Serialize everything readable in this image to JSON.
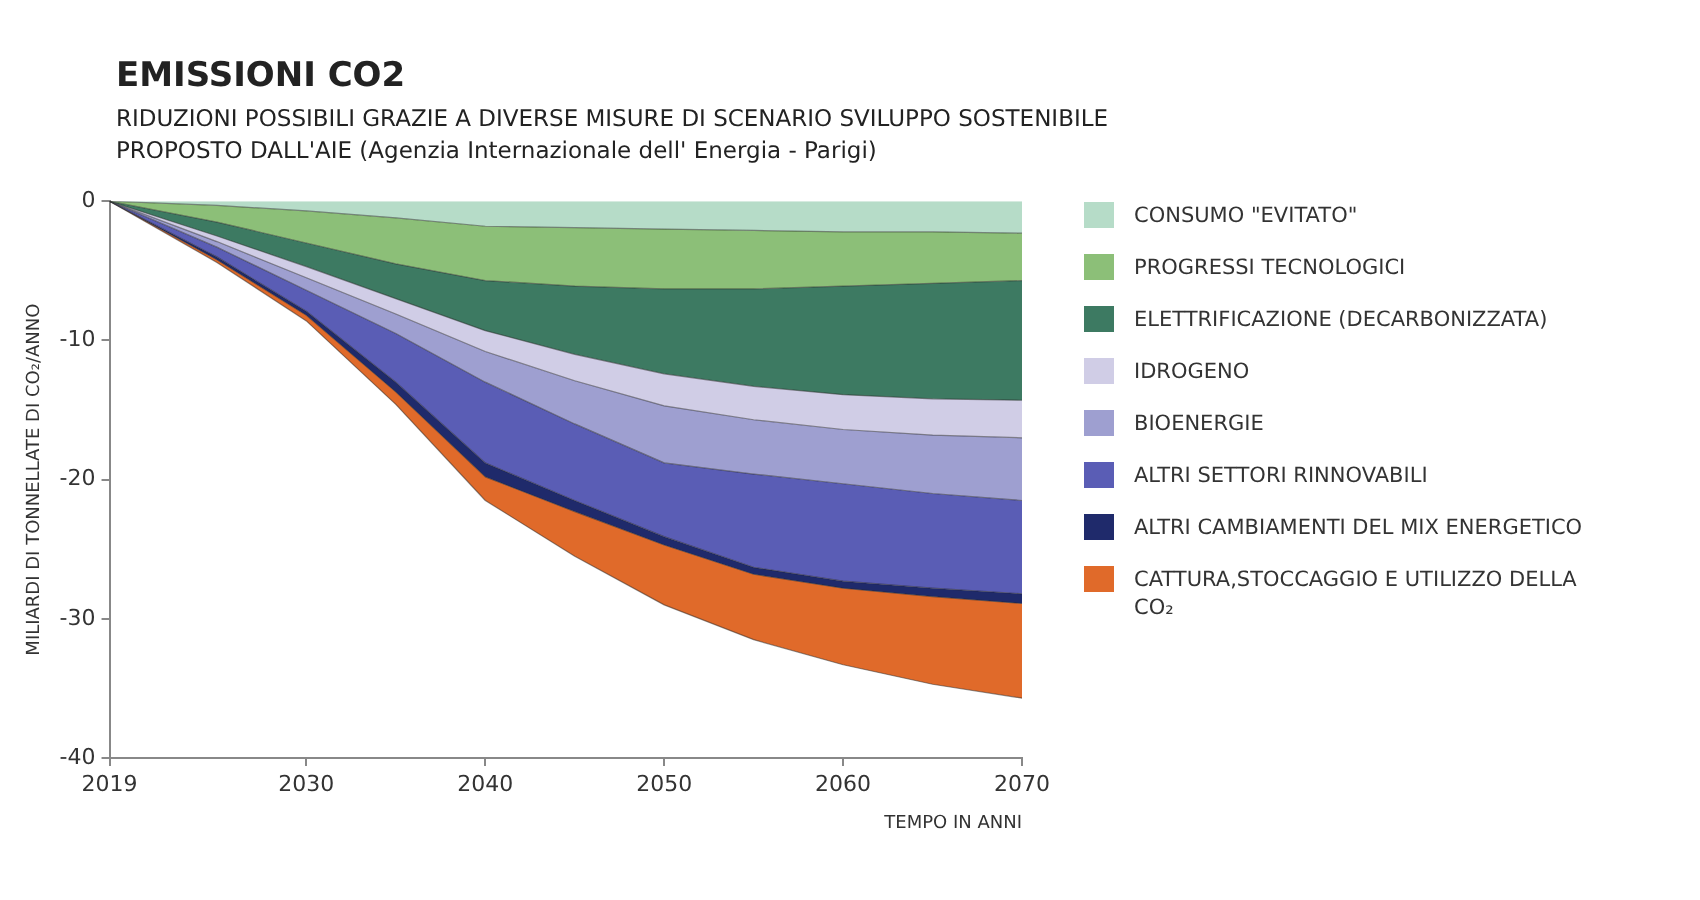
{
  "chart_data": {
    "type": "area",
    "title": "EMISSIONI CO2",
    "subtitle": "RIDUZIONI POSSIBILI GRAZIE A DIVERSE MISURE DI SCENARIO SVILUPPO SOSTENIBILE PROPOSTO DALL'AIE (Agenzia Internazionale dell' Energia - Parigi)",
    "xlabel": "TEMPO IN ANNI",
    "ylabel": "MILIARDI DI TONNELLATE DI CO₂/ANNO",
    "x": [
      2019,
      2025,
      2030,
      2035,
      2040,
      2045,
      2050,
      2055,
      2060,
      2065,
      2070
    ],
    "stacked": true,
    "series": [
      {
        "name": "CONSUMO \"EVITATO\"",
        "color": "#b6dcc8",
        "values": [
          0,
          -0.3,
          -0.7,
          -1.2,
          -1.8,
          -1.9,
          -2.0,
          -2.1,
          -2.2,
          -2.2,
          -2.3
        ]
      },
      {
        "name": "PROGRESSI TECNOLOGICI",
        "color": "#8cbf78",
        "values": [
          0,
          -1.2,
          -2.3,
          -3.3,
          -3.9,
          -4.2,
          -4.3,
          -4.2,
          -3.9,
          -3.7,
          -3.4
        ]
      },
      {
        "name": "ELETTRIFICAZIONE (DECARBONIZZATA)",
        "color": "#3d7a62",
        "values": [
          0,
          -1.0,
          -1.7,
          -2.5,
          -3.6,
          -4.9,
          -6.1,
          -7.0,
          -7.8,
          -8.3,
          -8.6
        ]
      },
      {
        "name": "IDROGENO",
        "color": "#d0cde6",
        "values": [
          0,
          -0.4,
          -0.8,
          -1.1,
          -1.5,
          -1.9,
          -2.3,
          -2.4,
          -2.5,
          -2.6,
          -2.7
        ]
      },
      {
        "name": "BIOENERGIE",
        "color": "#9e9fd0",
        "values": [
          0,
          -0.4,
          -0.9,
          -1.4,
          -2.2,
          -3.1,
          -4.1,
          -3.9,
          -3.9,
          -4.2,
          -4.5
        ]
      },
      {
        "name": "ALTRI SETTORI RINNOVABILI",
        "color": "#5a5db5",
        "values": [
          0,
          -0.7,
          -1.5,
          -3.5,
          -5.8,
          -5.5,
          -5.3,
          -6.7,
          -7.0,
          -6.8,
          -6.7
        ]
      },
      {
        "name": "ALTRI CAMBIAMENTI DEL MIX ENERGETICO",
        "color": "#1f2a6b",
        "values": [
          0,
          -0.2,
          -0.3,
          -0.7,
          -1.0,
          -0.8,
          -0.6,
          -0.5,
          -0.5,
          -0.6,
          -0.7
        ]
      },
      {
        "name": "CATTURA,STOCCAGGIO E UTILIZZO DELLA CO₂",
        "color": "#e06a2a",
        "values": [
          0,
          -0.2,
          -0.4,
          -0.9,
          -1.7,
          -3.2,
          -4.3,
          -4.7,
          -5.5,
          -6.3,
          -6.8
        ]
      }
    ],
    "xlim": [
      2019,
      2070
    ],
    "xticks": [
      2019,
      2030,
      2040,
      2050,
      2060,
      2070
    ],
    "ylim": [
      -40,
      0
    ],
    "yticks": [
      0,
      -10,
      -20,
      -30,
      -40
    ],
    "grid": false,
    "legend": "right"
  }
}
